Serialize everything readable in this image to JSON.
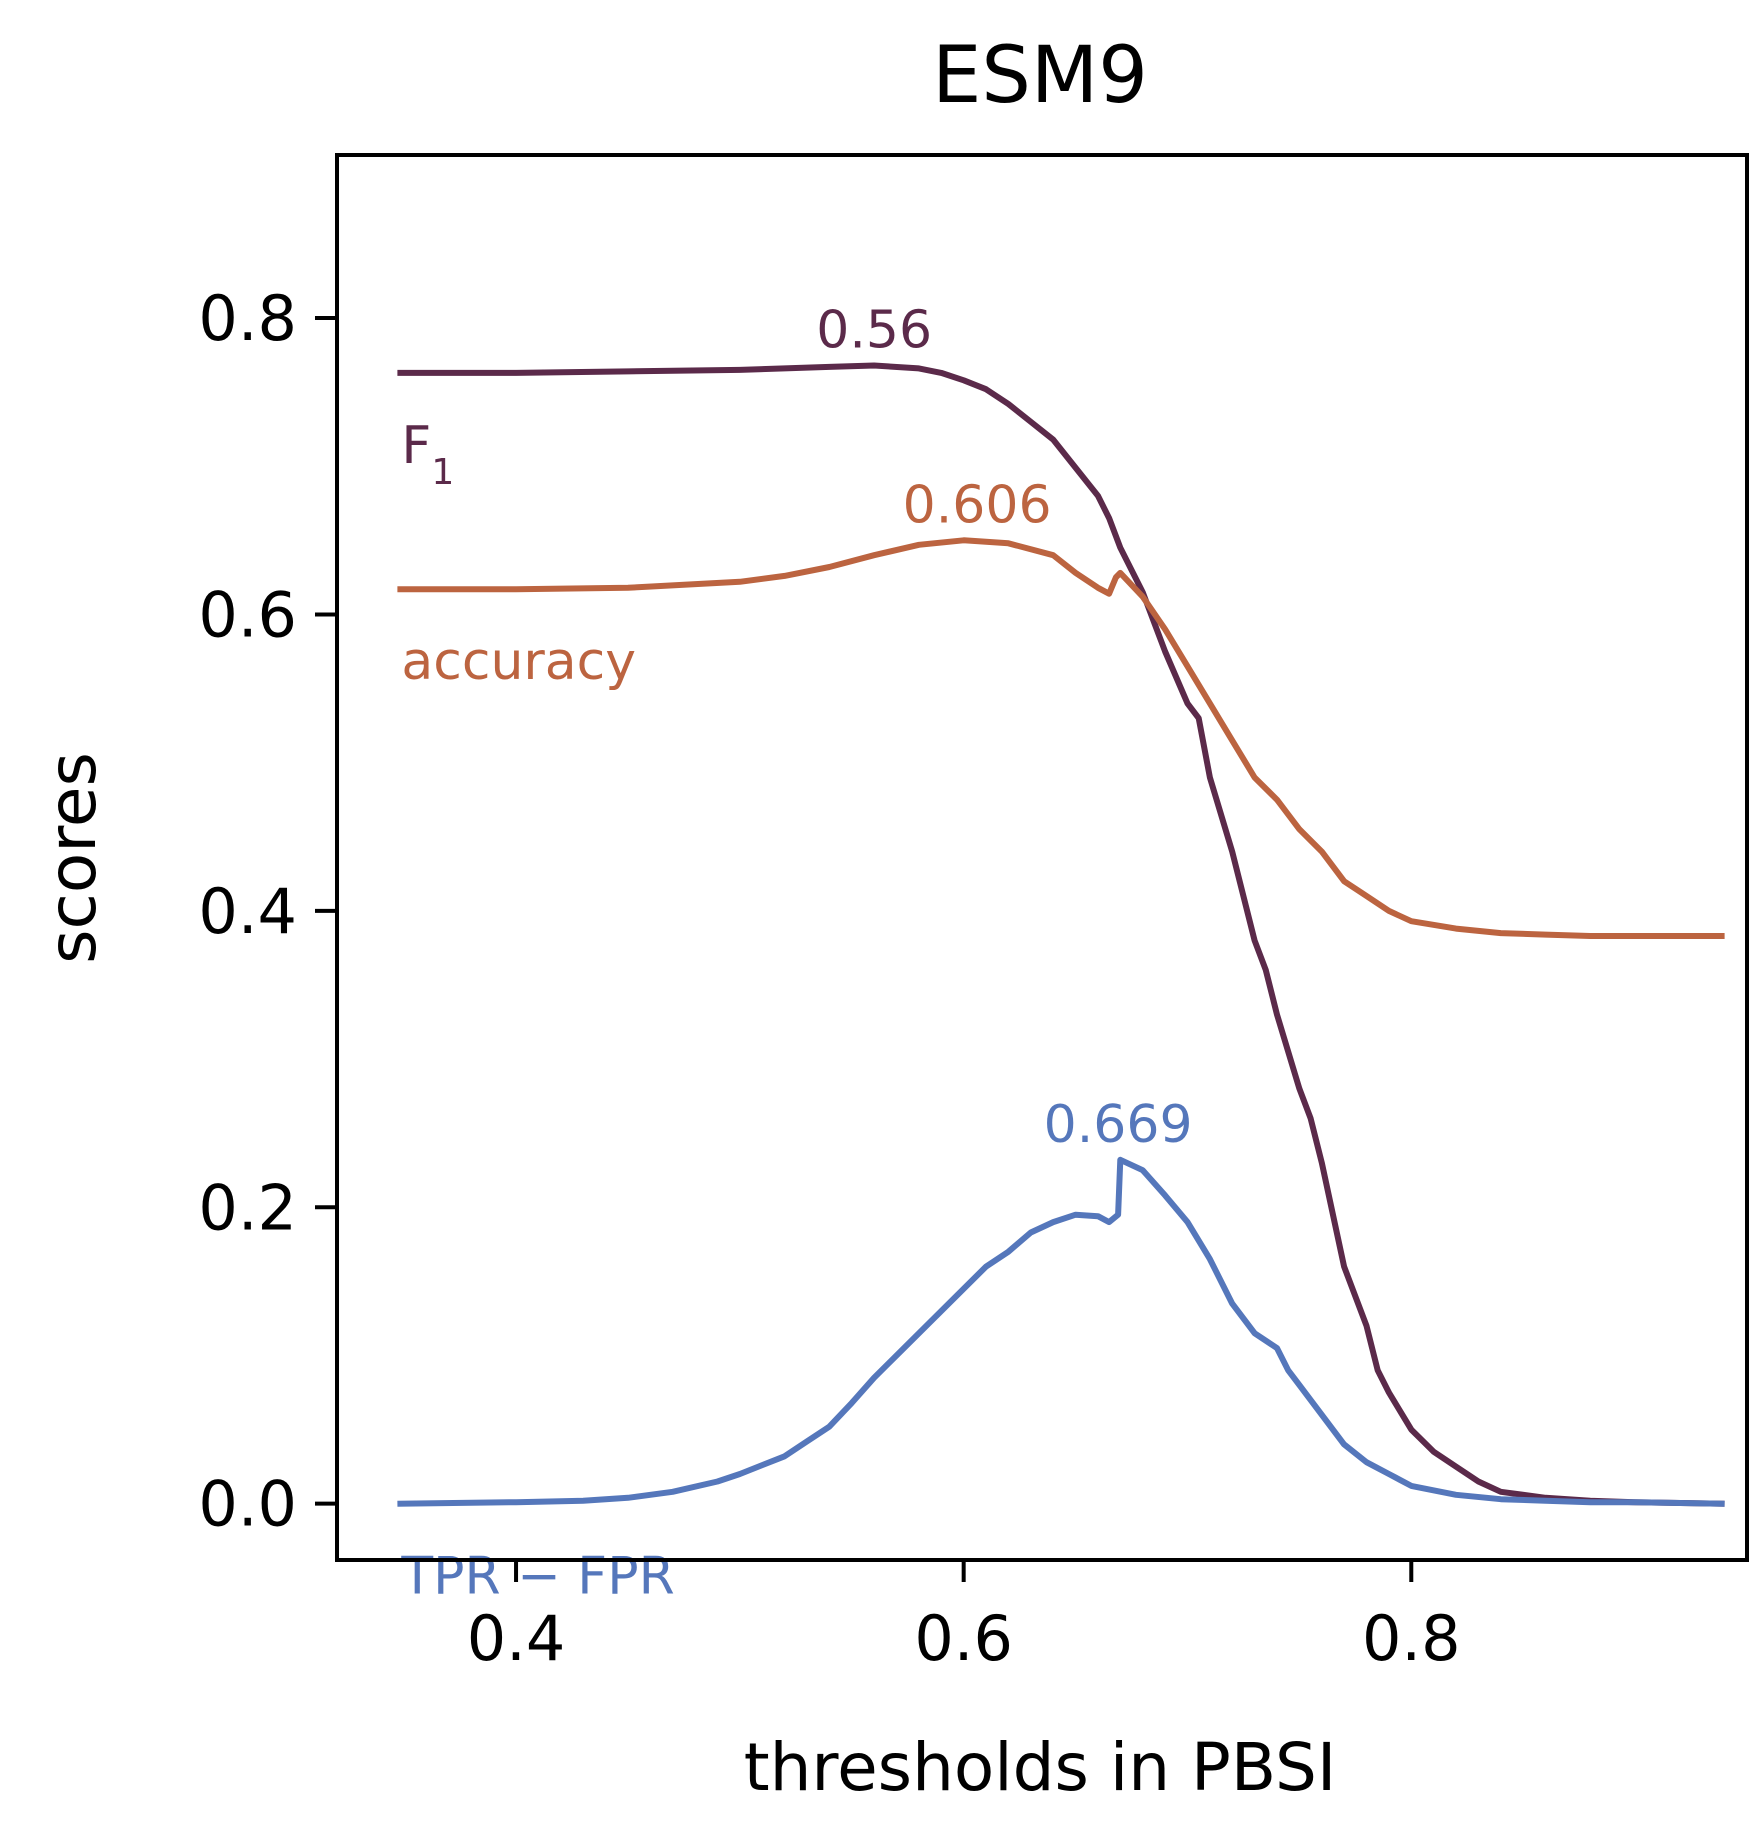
{
  "chart_data": {
    "type": "line",
    "title": "ESM9",
    "xlabel": "thresholds in PBSI",
    "ylabel": "scores",
    "xlim": [
      0.32,
      0.95
    ],
    "ylim": [
      -0.038,
      0.91
    ],
    "xticks": [
      0.4,
      0.6,
      0.8
    ],
    "xtick_labels": [
      "0.4",
      "0.6",
      "0.8"
    ],
    "yticks": [
      0.0,
      0.2,
      0.4,
      0.6,
      0.8
    ],
    "ytick_labels": [
      "0.0",
      "0.2",
      "0.4",
      "0.6",
      "0.8"
    ],
    "grid": false,
    "legend": "none (labels placed next to curves)",
    "series": [
      {
        "name": "F",
        "name_subscript": "1",
        "color": "#5b2a4a",
        "peak_label": "0.56",
        "peak_x": 0.56,
        "x": [
          0.347,
          0.4,
          0.45,
          0.5,
          0.52,
          0.54,
          0.56,
          0.58,
          0.59,
          0.6,
          0.61,
          0.62,
          0.63,
          0.64,
          0.65,
          0.66,
          0.665,
          0.67,
          0.68,
          0.69,
          0.7,
          0.705,
          0.71,
          0.72,
          0.73,
          0.735,
          0.74,
          0.75,
          0.755,
          0.76,
          0.77,
          0.78,
          0.785,
          0.79,
          0.8,
          0.81,
          0.82,
          0.83,
          0.84,
          0.86,
          0.88,
          0.9,
          0.94
        ],
        "y": [
          0.763,
          0.763,
          0.764,
          0.765,
          0.766,
          0.767,
          0.768,
          0.766,
          0.763,
          0.758,
          0.752,
          0.742,
          0.73,
          0.718,
          0.699,
          0.68,
          0.665,
          0.645,
          0.615,
          0.575,
          0.54,
          0.53,
          0.49,
          0.44,
          0.38,
          0.36,
          0.33,
          0.28,
          0.26,
          0.23,
          0.16,
          0.12,
          0.09,
          0.075,
          0.05,
          0.035,
          0.025,
          0.015,
          0.008,
          0.004,
          0.002,
          0.001,
          0.0
        ]
      },
      {
        "name": "accuracy",
        "color": "#bc6440",
        "peak_label": "0.606",
        "peak_x": 0.606,
        "x": [
          0.347,
          0.4,
          0.45,
          0.5,
          0.52,
          0.54,
          0.56,
          0.58,
          0.6,
          0.62,
          0.64,
          0.65,
          0.66,
          0.665,
          0.668,
          0.67,
          0.68,
          0.69,
          0.7,
          0.71,
          0.72,
          0.73,
          0.74,
          0.745,
          0.75,
          0.76,
          0.77,
          0.78,
          0.79,
          0.8,
          0.82,
          0.84,
          0.86,
          0.88,
          0.9,
          0.94
        ],
        "y": [
          0.617,
          0.617,
          0.618,
          0.622,
          0.626,
          0.632,
          0.64,
          0.647,
          0.65,
          0.648,
          0.64,
          0.628,
          0.618,
          0.614,
          0.625,
          0.628,
          0.612,
          0.59,
          0.565,
          0.54,
          0.515,
          0.49,
          0.475,
          0.465,
          0.455,
          0.44,
          0.42,
          0.41,
          0.4,
          0.393,
          0.388,
          0.385,
          0.384,
          0.383,
          0.383,
          0.383
        ]
      },
      {
        "name": "TPR − FPR",
        "color": "#5577bb",
        "peak_label": "0.669",
        "peak_x": 0.669,
        "x": [
          0.347,
          0.4,
          0.43,
          0.45,
          0.47,
          0.49,
          0.5,
          0.51,
          0.52,
          0.53,
          0.54,
          0.55,
          0.56,
          0.57,
          0.58,
          0.59,
          0.6,
          0.61,
          0.62,
          0.63,
          0.64,
          0.65,
          0.66,
          0.665,
          0.669,
          0.67,
          0.68,
          0.69,
          0.7,
          0.71,
          0.72,
          0.73,
          0.74,
          0.745,
          0.75,
          0.76,
          0.77,
          0.78,
          0.79,
          0.8,
          0.82,
          0.84,
          0.86,
          0.88,
          0.9,
          0.94
        ],
        "y": [
          0.0,
          0.001,
          0.002,
          0.004,
          0.008,
          0.015,
          0.02,
          0.026,
          0.032,
          0.042,
          0.052,
          0.068,
          0.085,
          0.1,
          0.115,
          0.13,
          0.145,
          0.16,
          0.17,
          0.183,
          0.19,
          0.195,
          0.194,
          0.19,
          0.195,
          0.232,
          0.225,
          0.208,
          0.19,
          0.165,
          0.135,
          0.115,
          0.105,
          0.09,
          0.08,
          0.06,
          0.04,
          0.028,
          0.02,
          0.012,
          0.006,
          0.003,
          0.002,
          0.001,
          0.001,
          0.0
        ]
      }
    ]
  }
}
